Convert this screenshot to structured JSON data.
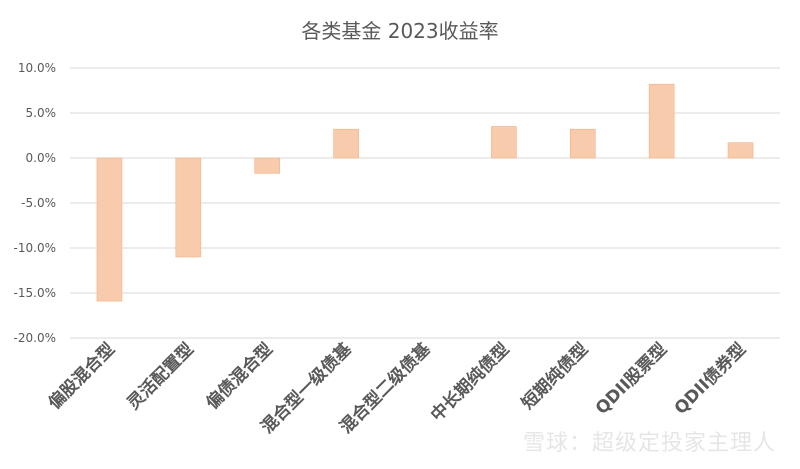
{
  "chart_data": {
    "type": "bar",
    "title": "各类基金 2023收益率",
    "categories": [
      "偏股混合型",
      "灵活配置型",
      "偏债混合型",
      "混合型一级债基",
      "混合型二级债基",
      "中长期纯债型",
      "短期纯债型",
      "QDII股票型",
      "QDII债券型"
    ],
    "values": [
      -15.9,
      -11.0,
      -1.7,
      3.2,
      0.0,
      3.5,
      3.2,
      8.2,
      1.7
    ],
    "yticks": [
      "10.0%",
      "5.0%",
      "0.0%",
      "-5.0%",
      "-10.0%",
      "-15.0%",
      "-20.0%"
    ],
    "ylim": [
      -20,
      10
    ],
    "grid": true,
    "bar_color": "#f8cbad",
    "bar_stroke": "#f4b183",
    "xlabel": "",
    "ylabel": ""
  },
  "watermark": "雪球：超级定投家主理人"
}
